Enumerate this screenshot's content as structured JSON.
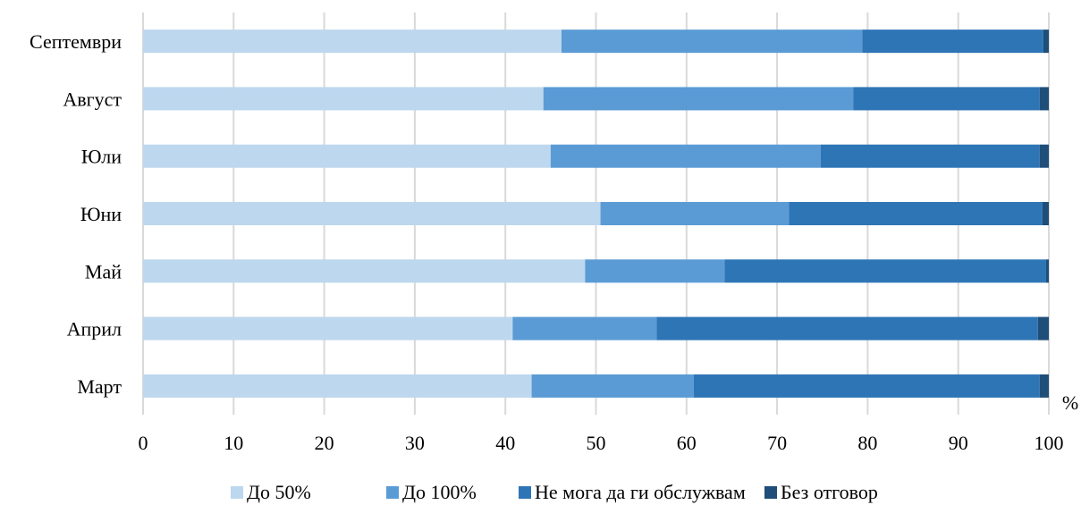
{
  "chart_data": {
    "type": "bar",
    "orientation": "horizontal",
    "stacked": true,
    "categories": [
      "Септември",
      "Август",
      "Юли",
      "Юни",
      "Май",
      "Април",
      "Март"
    ],
    "series": [
      {
        "name": "До 50%",
        "color": "#bdd7ee",
        "values": [
          46.2,
          44.2,
          45.0,
          50.5,
          48.8,
          40.8,
          42.9
        ]
      },
      {
        "name": "До 100%",
        "color": "#5b9bd5",
        "values": [
          33.2,
          34.2,
          29.8,
          20.8,
          15.4,
          15.9,
          17.9
        ]
      },
      {
        "name": "Не мога да ги обслужвам",
        "color": "#2e75b6",
        "values": [
          20.0,
          20.6,
          24.2,
          28.0,
          35.5,
          42.1,
          38.2
        ]
      },
      {
        "name": "Без отговор",
        "color": "#1f4e79",
        "values": [
          0.6,
          1.0,
          1.0,
          0.7,
          0.3,
          1.2,
          1.0
        ]
      }
    ],
    "xlim": [
      0,
      100
    ],
    "xticks": [
      "0",
      "10",
      "20",
      "30",
      "40",
      "50",
      "60",
      "70",
      "80",
      "90",
      "100"
    ],
    "unit_label": "%",
    "grid": "vertical",
    "legend_position": "bottom"
  }
}
